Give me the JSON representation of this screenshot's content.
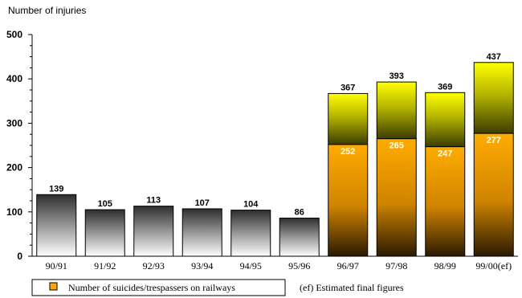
{
  "chart_data": {
    "type": "bar",
    "ylabel": "Number of injuries",
    "ylim": [
      0,
      500
    ],
    "yticks": [
      0,
      100,
      200,
      300,
      400,
      500
    ],
    "categories": [
      "90/91",
      "91/92",
      "92/93",
      "93/94",
      "94/95",
      "95/96",
      "96/97",
      "97/98",
      "98/99",
      "99/00(ef)"
    ],
    "series": [
      {
        "name": "",
        "values": [
          139,
          105,
          113,
          107,
          104,
          86,
          367,
          393,
          369,
          437
        ]
      },
      {
        "name": "Number of suicides/trespassers on railways",
        "values": [
          null,
          null,
          null,
          null,
          null,
          null,
          252,
          265,
          247,
          277
        ]
      }
    ],
    "legend": {
      "placement": "bottom-left",
      "label": "Number of suicides/trespassers on railways",
      "note": "(ef) Estimated final figures"
    },
    "colors": {
      "grey_dark": "#303030",
      "grey_light": "#ffffff",
      "yellow": "#ffff00",
      "olive": "#5a5a00",
      "orange": "#ffa800",
      "brown": "#3a2400"
    }
  }
}
